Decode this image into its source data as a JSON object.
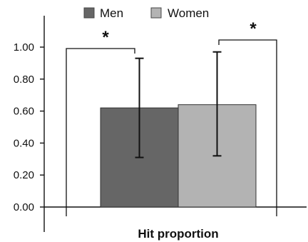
{
  "chart_data": {
    "type": "bar",
    "categories": [
      "Hit proportion"
    ],
    "series": [
      {
        "name": "Men",
        "values": [
          0.62
        ],
        "error_low": [
          0.31
        ],
        "error_high": [
          0.93
        ],
        "color": "#666666"
      },
      {
        "name": "Women",
        "values": [
          0.64
        ],
        "error_low": [
          0.32
        ],
        "error_high": [
          0.97
        ],
        "color": "#b3b3b3"
      }
    ],
    "xlabel": "Hit proportion",
    "ylabel": "",
    "ylim": [
      0,
      1.0
    ],
    "yticks": [
      "0.00",
      "0.20",
      "0.40",
      "0.60",
      "0.80",
      "1.00"
    ],
    "legend_position": "top",
    "grid": false,
    "annotations": [
      "*",
      "*"
    ]
  }
}
